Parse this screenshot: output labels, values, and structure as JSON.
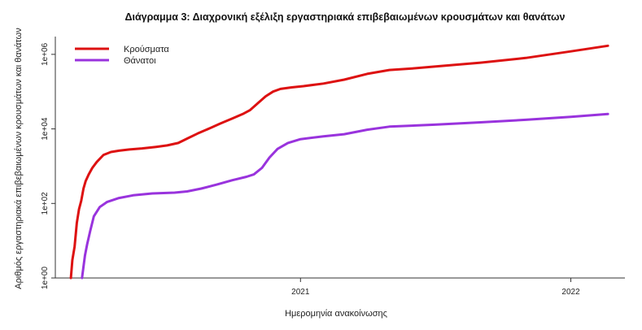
{
  "chart_data": {
    "type": "line",
    "title": "Διάγραμμα 3: Διαχρονική εξέλιξη εργαστηριακά επιβεβαιωμένων κρουσμάτων και θανάτων",
    "xlabel": "Ημερομηνία ανακοίνωσης",
    "ylabel": "Αριθμός εργαστηριακά επιβεβαιωμένων κρουσμάτων και θανάτων",
    "y_scale": "log",
    "ylim": [
      1,
      3000000
    ],
    "xlim": [
      "2020-02-05",
      "2022-03-15"
    ],
    "x_ticks": [
      {
        "label": "2021",
        "date": "2021-01-01"
      },
      {
        "label": "2022",
        "date": "2022-01-01"
      }
    ],
    "y_ticks": [
      {
        "label": "1e+00",
        "value": 1
      },
      {
        "label": "1e+02",
        "value": 100
      },
      {
        "label": "1e+04",
        "value": 10000
      },
      {
        "label": "1e+06",
        "value": 1000000
      }
    ],
    "grid": false,
    "legend_position": "top-left",
    "series": [
      {
        "name": "Κρούσματα",
        "color": "#dd1111",
        "points": [
          [
            "2020-02-26",
            1
          ],
          [
            "2020-02-28",
            3
          ],
          [
            "2020-03-02",
            7
          ],
          [
            "2020-03-05",
            30
          ],
          [
            "2020-03-08",
            70
          ],
          [
            "2020-03-11",
            120
          ],
          [
            "2020-03-14",
            250
          ],
          [
            "2020-03-17",
            400
          ],
          [
            "2020-03-21",
            600
          ],
          [
            "2020-03-26",
            900
          ],
          [
            "2020-04-01",
            1300
          ],
          [
            "2020-04-10",
            2000
          ],
          [
            "2020-04-20",
            2400
          ],
          [
            "2020-05-01",
            2600
          ],
          [
            "2020-05-15",
            2800
          ],
          [
            "2020-06-01",
            3000
          ],
          [
            "2020-06-20",
            3300
          ],
          [
            "2020-07-05",
            3600
          ],
          [
            "2020-07-20",
            4200
          ],
          [
            "2020-08-01",
            5500
          ],
          [
            "2020-08-15",
            7500
          ],
          [
            "2020-09-01",
            10500
          ],
          [
            "2020-09-15",
            14000
          ],
          [
            "2020-10-01",
            19000
          ],
          [
            "2020-10-15",
            25000
          ],
          [
            "2020-10-25",
            32000
          ],
          [
            "2020-11-05",
            50000
          ],
          [
            "2020-11-15",
            75000
          ],
          [
            "2020-11-25",
            100000
          ],
          [
            "2020-12-05",
            118000
          ],
          [
            "2020-12-20",
            130000
          ],
          [
            "2021-01-05",
            140000
          ],
          [
            "2021-02-01",
            165000
          ],
          [
            "2021-03-01",
            210000
          ],
          [
            "2021-04-01",
            300000
          ],
          [
            "2021-05-01",
            380000
          ],
          [
            "2021-06-01",
            420000
          ],
          [
            "2021-07-01",
            470000
          ],
          [
            "2021-09-01",
            600000
          ],
          [
            "2021-11-01",
            800000
          ],
          [
            "2022-01-01",
            1200000
          ],
          [
            "2022-02-20",
            1700000
          ]
        ]
      },
      {
        "name": "Θάνατοι",
        "color": "#9933dd",
        "points": [
          [
            "2020-03-12",
            1
          ],
          [
            "2020-03-14",
            2
          ],
          [
            "2020-03-16",
            4
          ],
          [
            "2020-03-19",
            8
          ],
          [
            "2020-03-23",
            18
          ],
          [
            "2020-03-28",
            45
          ],
          [
            "2020-04-05",
            80
          ],
          [
            "2020-04-15",
            110
          ],
          [
            "2020-05-01",
            140
          ],
          [
            "2020-05-20",
            165
          ],
          [
            "2020-06-15",
            185
          ],
          [
            "2020-07-15",
            195
          ],
          [
            "2020-08-01",
            210
          ],
          [
            "2020-08-20",
            250
          ],
          [
            "2020-09-10",
            320
          ],
          [
            "2020-10-01",
            420
          ],
          [
            "2020-10-20",
            520
          ],
          [
            "2020-10-30",
            600
          ],
          [
            "2020-11-10",
            900
          ],
          [
            "2020-11-20",
            1700
          ],
          [
            "2020-12-01",
            2900
          ],
          [
            "2020-12-15",
            4200
          ],
          [
            "2021-01-01",
            5300
          ],
          [
            "2021-02-01",
            6300
          ],
          [
            "2021-03-01",
            7200
          ],
          [
            "2021-04-01",
            9500
          ],
          [
            "2021-05-01",
            11500
          ],
          [
            "2021-07-01",
            13000
          ],
          [
            "2021-09-01",
            15000
          ],
          [
            "2021-11-01",
            17500
          ],
          [
            "2022-01-01",
            21000
          ],
          [
            "2022-02-20",
            25000
          ]
        ]
      }
    ]
  }
}
